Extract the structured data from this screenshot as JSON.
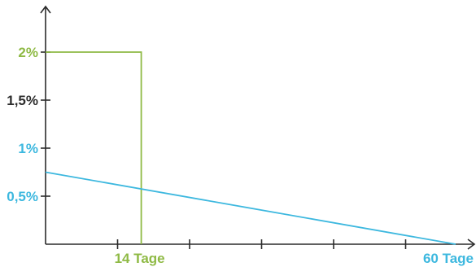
{
  "chart_data": {
    "type": "line",
    "title": "",
    "xlabel": "",
    "ylabel": "",
    "xlim": [
      0,
      60
    ],
    "ylim": [
      0,
      2.4
    ],
    "x_tick_count": 5,
    "y_ticks": [
      {
        "value": 0.5,
        "label": "0,5%",
        "color": "#3db8df"
      },
      {
        "value": 1.0,
        "label": "1%",
        "color": "#3db8df"
      },
      {
        "value": 1.5,
        "label": "1,5%",
        "color": "#2d2d2d"
      },
      {
        "value": 2.0,
        "label": "2%",
        "color": "#8fba45"
      }
    ],
    "x_labels": [
      {
        "value": 14,
        "label": "14 Tage",
        "color": "#8fba45"
      },
      {
        "value": 60,
        "label": "60 Tage",
        "color": "#3db8df"
      }
    ],
    "series": [
      {
        "color": "#8fba45",
        "points": [
          [
            0,
            2.0
          ],
          [
            14,
            2.0
          ],
          [
            14,
            0
          ]
        ]
      },
      {
        "color": "#3db8df",
        "points": [
          [
            0,
            0.75
          ],
          [
            60,
            0
          ]
        ]
      }
    ],
    "grid": false,
    "legend": "none"
  }
}
